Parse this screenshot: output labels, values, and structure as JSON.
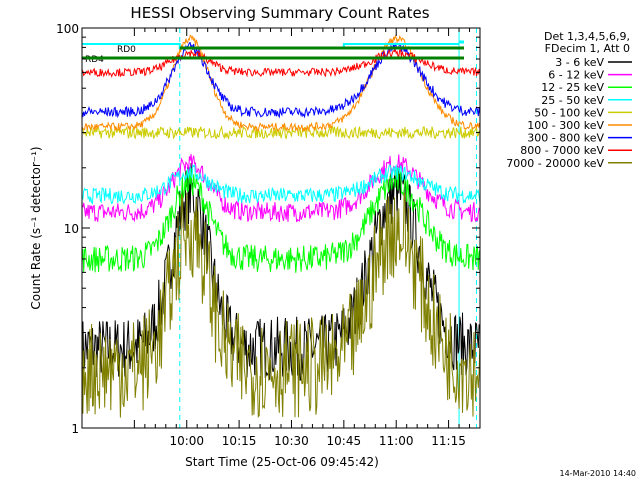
{
  "chart_data": {
    "type": "line",
    "title": "HESSI Observing Summary Count Rates",
    "xlabel": "Start Time (25-Oct-06 09:45:42)",
    "ylabel": "Count Rate (s⁻¹ detector⁻¹)",
    "yscale": "log",
    "xlim_minutes": [
      -15,
      99
    ],
    "ylim": [
      1,
      100
    ],
    "x_ticks": [
      {
        "t": 15,
        "label": "10:00"
      },
      {
        "t": 30,
        "label": "10:15"
      },
      {
        "t": 45,
        "label": "10:30"
      },
      {
        "t": 60,
        "label": "10:45"
      },
      {
        "t": 75,
        "label": "11:00"
      },
      {
        "t": 90,
        "label": "11:15"
      }
    ],
    "y_ticks": [
      {
        "v": 1,
        "label": "1"
      },
      {
        "v": 10,
        "label": "10"
      },
      {
        "v": 100,
        "label": "100"
      }
    ],
    "legend_position": "right",
    "legend_header": [
      "Det 1,3,4,5,6,9,",
      "FDecim 1, Att 0"
    ],
    "annotations": [
      "RD0",
      "RD4"
    ],
    "footer_date": "14-Mar-2010 14:40",
    "cyan_markers_minutes": [
      13,
      93,
      98
    ],
    "series": [
      {
        "name": "3 - 6 keV",
        "color": "#000000",
        "base": 2.5,
        "peak": 15,
        "noise": 0.16
      },
      {
        "name": "6 - 12 keV",
        "color": "#ff00ff",
        "base": 12,
        "peak": 21,
        "noise": 0.05
      },
      {
        "name": "12 - 25 keV",
        "color": "#00ff00",
        "base": 7,
        "peak": 17,
        "noise": 0.07
      },
      {
        "name": "25 - 50 keV",
        "color": "#00ffff",
        "base": 14.5,
        "peak": 19,
        "noise": 0.04
      },
      {
        "name": "50 - 100 keV",
        "color": "#cccc00",
        "base": 30,
        "peak": 30,
        "noise": 0.03
      },
      {
        "name": "100 - 300 keV",
        "color": "#ff8c00",
        "base": 32,
        "peak": 88,
        "noise": 0.02
      },
      {
        "name": "300 - 800 keV",
        "color": "#0000ff",
        "base": 38,
        "peak": 80,
        "noise": 0.025
      },
      {
        "name": "800 - 7000 keV",
        "color": "#ff0000",
        "base": 60,
        "peak": 75,
        "noise": 0.02
      },
      {
        "name": "7000 - 20000 keV",
        "color": "#808000",
        "base": 2.0,
        "peak": 10,
        "noise": 0.25
      }
    ]
  }
}
